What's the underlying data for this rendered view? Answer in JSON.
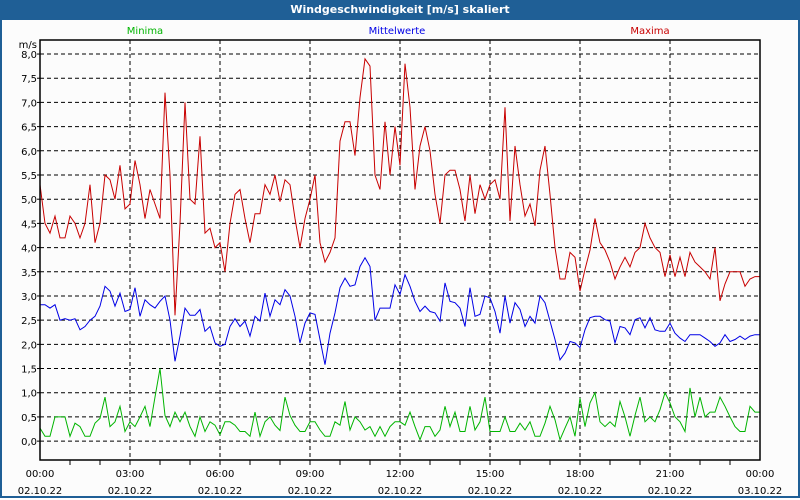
{
  "window": {
    "title": "Windgeschwindigkeit [m/s] skaliert"
  },
  "chart_data": {
    "type": "line",
    "title": "Windgeschwindigkeit [m/s] skaliert",
    "ylabel": "m/s",
    "xlabel": "",
    "ylim": [
      -0.39,
      8.29
    ],
    "xlim_hours": [
      0,
      24
    ],
    "x_start_hour": 0,
    "x_step_hours": 0.16667,
    "grid": true,
    "legend_placement": "top",
    "yticks": [
      "0,0",
      "0,5",
      "1,0",
      "1,5",
      "2,0",
      "2,5",
      "3,0",
      "3,5",
      "4,0",
      "4,5",
      "5,0",
      "5,5",
      "6,0",
      "6,5",
      "7,0",
      "7,5",
      "8,0"
    ],
    "ytick_values": [
      0,
      0.5,
      1,
      1.5,
      2,
      2.5,
      3,
      3.5,
      4,
      4.5,
      5,
      5.5,
      6,
      6.5,
      7,
      7.5,
      8
    ],
    "xticks": [
      {
        "hour": 0,
        "time": "00:00",
        "date": "02.10.22"
      },
      {
        "hour": 3,
        "time": "03:00",
        "date": "02.10.22"
      },
      {
        "hour": 6,
        "time": "06:00",
        "date": "02.10.22"
      },
      {
        "hour": 9,
        "time": "09:00",
        "date": "02.10.22"
      },
      {
        "hour": 12,
        "time": "12:00",
        "date": "02.10.22"
      },
      {
        "hour": 15,
        "time": "15:00",
        "date": "02.10.22"
      },
      {
        "hour": 18,
        "time": "18:00",
        "date": "02.10.22"
      },
      {
        "hour": 21,
        "time": "21:00",
        "date": "02.10.22"
      },
      {
        "hour": 24,
        "time": "00:00",
        "date": "03.10.22"
      }
    ],
    "series": [
      {
        "name": "Minima",
        "color": "#00b400",
        "values": [
          0.27,
          0.1,
          0.1,
          0.5,
          0.5,
          0.5,
          0.1,
          0.37,
          0.3,
          0.1,
          0.1,
          0.37,
          0.47,
          0.91,
          0.3,
          0.4,
          0.72,
          0.2,
          0.4,
          0.3,
          0.5,
          0.72,
          0.3,
          0.91,
          1.5,
          0.53,
          0.3,
          0.6,
          0.4,
          0.6,
          0.3,
          0.1,
          0.5,
          0.2,
          0.4,
          0.33,
          0.13,
          0.4,
          0.4,
          0.33,
          0.2,
          0.2,
          0.1,
          0.6,
          0.1,
          0.4,
          0.5,
          0.33,
          0.22,
          0.91,
          0.53,
          0.33,
          0.2,
          0.2,
          0.4,
          0.4,
          0.23,
          0.1,
          0.1,
          0.4,
          0.33,
          0.82,
          0.23,
          0.5,
          0.4,
          0.23,
          0.3,
          0.1,
          0.3,
          0.1,
          0.3,
          0.4,
          0.4,
          0.33,
          0.6,
          0.3,
          0.03,
          0.3,
          0.3,
          0.1,
          0.23,
          0.72,
          0.3,
          0.6,
          0.2,
          0.2,
          0.72,
          0.23,
          0.4,
          0.91,
          0.2,
          0.2,
          0.2,
          0.5,
          0.2,
          0.2,
          0.37,
          0.23,
          0.4,
          0.1,
          0.1,
          0.37,
          0.72,
          0.44,
          0.03,
          0.27,
          0.5,
          0.1,
          0.89,
          0.3,
          0.79,
          1.0,
          0.4,
          0.3,
          0.4,
          0.3,
          0.82,
          0.5,
          0.1,
          0.53,
          0.91,
          0.4,
          0.5,
          0.4,
          0.65,
          1.0,
          0.79,
          0.5,
          0.4,
          0.2,
          1.1,
          0.5,
          0.91,
          0.5,
          0.6,
          0.6,
          0.91,
          0.72,
          0.5,
          0.3,
          0.2,
          0.2,
          0.72,
          0.6,
          0.6
        ]
      },
      {
        "name": "Mittelwerte",
        "color": "#0000e6",
        "values": [
          2.82,
          2.82,
          2.75,
          2.82,
          2.5,
          2.53,
          2.5,
          2.53,
          2.3,
          2.37,
          2.5,
          2.58,
          2.79,
          3.2,
          3.1,
          2.79,
          3.06,
          2.68,
          2.72,
          3.17,
          2.58,
          2.92,
          2.82,
          2.75,
          2.89,
          3.0,
          2.5,
          1.65,
          2.17,
          2.75,
          2.6,
          2.6,
          2.72,
          2.27,
          2.37,
          2.03,
          1.96,
          2.0,
          2.37,
          2.53,
          2.37,
          2.48,
          2.17,
          2.58,
          2.48,
          3.06,
          2.58,
          2.92,
          2.82,
          3.13,
          3.0,
          2.58,
          2.03,
          2.44,
          2.65,
          2.62,
          2.1,
          1.58,
          2.23,
          2.65,
          3.17,
          3.37,
          3.2,
          3.23,
          3.61,
          3.79,
          3.61,
          2.5,
          2.75,
          2.75,
          2.75,
          3.23,
          3.03,
          3.44,
          3.2,
          2.89,
          2.68,
          2.79,
          2.68,
          2.65,
          2.48,
          3.27,
          2.89,
          2.86,
          2.75,
          2.37,
          3.17,
          2.58,
          2.62,
          3.0,
          2.96,
          2.68,
          2.23,
          3.0,
          2.44,
          2.86,
          2.72,
          2.37,
          2.58,
          2.44,
          3.0,
          2.86,
          2.48,
          2.1,
          1.68,
          1.82,
          2.06,
          2.03,
          1.93,
          2.3,
          2.55,
          2.58,
          2.58,
          2.51,
          2.48,
          2.03,
          2.37,
          2.34,
          2.2,
          2.51,
          2.55,
          2.34,
          2.55,
          2.3,
          2.27,
          2.27,
          2.44,
          2.23,
          2.13,
          2.06,
          2.2,
          2.2,
          2.2,
          2.13,
          2.06,
          1.96,
          2.03,
          2.2,
          2.06,
          2.1,
          2.17,
          2.1,
          2.17,
          2.2,
          2.2
        ]
      },
      {
        "name": "Maxima",
        "color": "#c80000",
        "values": [
          5.3,
          4.5,
          4.3,
          4.65,
          4.2,
          4.2,
          4.65,
          4.5,
          4.2,
          4.5,
          5.3,
          4.1,
          4.5,
          5.5,
          5.4,
          5.0,
          5.7,
          4.8,
          4.9,
          5.8,
          5.3,
          4.6,
          5.2,
          4.9,
          4.6,
          7.2,
          5.5,
          2.6,
          4.5,
          7.0,
          5.0,
          4.9,
          6.3,
          4.3,
          4.4,
          4.0,
          4.1,
          3.5,
          4.5,
          5.1,
          5.2,
          4.6,
          4.1,
          4.7,
          4.7,
          5.3,
          5.1,
          5.5,
          4.95,
          5.4,
          5.3,
          4.6,
          4.0,
          4.6,
          5.0,
          5.5,
          4.1,
          3.7,
          3.9,
          4.2,
          6.2,
          6.6,
          6.6,
          5.9,
          7.1,
          7.9,
          7.75,
          5.5,
          5.2,
          6.6,
          5.5,
          6.5,
          5.7,
          7.8,
          6.9,
          5.2,
          6.1,
          6.5,
          6.0,
          5.1,
          4.5,
          5.5,
          5.6,
          5.6,
          5.2,
          4.55,
          5.5,
          4.7,
          5.3,
          5.0,
          5.3,
          5.4,
          5.0,
          6.9,
          4.55,
          6.1,
          5.3,
          4.65,
          4.9,
          4.45,
          5.6,
          6.1,
          5.1,
          4.0,
          3.35,
          3.35,
          3.9,
          3.8,
          3.1,
          3.55,
          3.95,
          4.6,
          4.1,
          3.95,
          3.7,
          3.35,
          3.6,
          3.8,
          3.6,
          3.9,
          4.0,
          4.5,
          4.2,
          4.0,
          3.9,
          3.4,
          3.85,
          3.4,
          3.8,
          3.4,
          3.9,
          3.7,
          3.6,
          3.5,
          3.35,
          4.0,
          2.9,
          3.25,
          3.5,
          3.5,
          3.5,
          3.2,
          3.35,
          3.4,
          3.4
        ]
      }
    ]
  }
}
